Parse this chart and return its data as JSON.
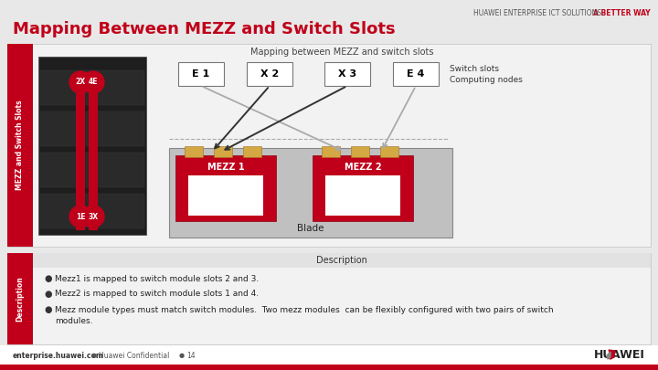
{
  "title": "Mapping Between MEZZ and Switch Slots",
  "subtitle": "Mapping between MEZZ and switch slots",
  "header_brand": "HUAWEI ENTERPRISE ICT SOLUTIONS ",
  "header_brand_accent": "A BETTER WAY",
  "bg_color": "#e8e8e8",
  "white": "#ffffff",
  "red": "#c0001a",
  "gold": "#d4a843",
  "slot_labels": [
    "E 1",
    "X 2",
    "X 3",
    "E 4"
  ],
  "mezz_labels": [
    "MEZZ 1",
    "MEZZ 2"
  ],
  "blade_label": "Blade",
  "switch_slots_label": "Switch slots",
  "computing_nodes_label": "Computing nodes",
  "desc_title": "Description",
  "desc_items": [
    "Mezz1 is mapped to switch module slots 2 and 3.",
    "Mezz2 is mapped to switch module slots 1 and 4.",
    "Mezz module types must match switch modules.  Two mezz modules  can be flexibly configured with two pairs of switch\nmodules."
  ],
  "footer_left": "enterprise.huawei.com",
  "footer_sep": "●",
  "footer_middle": "Huawei Confidential",
  "footer_page": "14",
  "sidebar_label1": "MEZZ and Switch Slots",
  "sidebar_label2": "Description"
}
